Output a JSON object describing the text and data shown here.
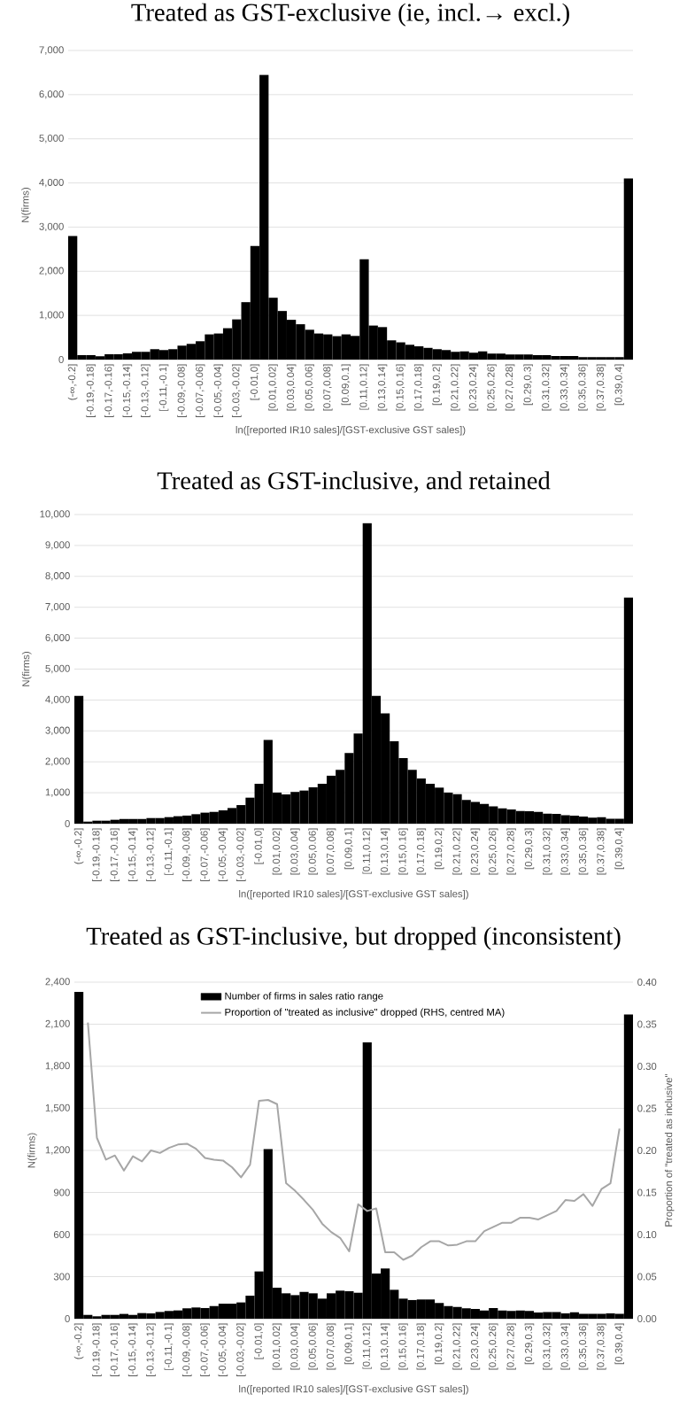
{
  "chart_data": [
    {
      "type": "bar",
      "title": "Treated as GST-exclusive (ie, incl.→ excl.)",
      "xlabel": "ln([reported IR10 sales]/[GST-exclusive GST sales])",
      "ylabel": "N(firms)",
      "categories": [
        "(-∞,-0.2]",
        null,
        "[-0.19,-0.18]",
        null,
        "[-0.17,-0.16]",
        null,
        "[-0.15,-0.14]",
        null,
        "[-0.13,-0.12]",
        null,
        "[-0.11,-0.1]",
        null,
        "[-0.09,-0.08]",
        null,
        "[-0.07,-0.06]",
        null,
        "[-0.05,-0.04]",
        null,
        "[-0.03,-0.02]",
        null,
        "[-0.01,0]",
        null,
        "[0.01,0.02]",
        null,
        "[0.03,0.04]",
        null,
        "[0.05,0.06]",
        null,
        "[0.07,0.08]",
        null,
        "[0.09,0.1]",
        null,
        "[0.11,0.12]",
        null,
        "[0.13,0.14]",
        null,
        "[0.15,0.16]",
        null,
        "[0.17,0.18]",
        null,
        "[0.19,0.2]",
        null,
        "[0.21,0.22]",
        null,
        "[0.23,0.24]",
        null,
        "[0.25,0.26]",
        null,
        "[0.27,0.28]",
        null,
        "[0.29,0.3]",
        null,
        "[0.31,0.32]",
        null,
        "[0.33,0.34]",
        null,
        "[0.35,0.36]",
        null,
        "[0.37,0.38]",
        null,
        "[0.39,0.4]",
        null
      ],
      "values": [
        2800,
        100,
        100,
        75,
        120,
        120,
        140,
        175,
        175,
        235,
        215,
        235,
        315,
        355,
        415,
        570,
        590,
        710,
        910,
        1300,
        2570,
        6450,
        1400,
        1100,
        900,
        800,
        675,
        590,
        570,
        530,
        570,
        535,
        2270,
        770,
        735,
        435,
        390,
        335,
        300,
        265,
        235,
        215,
        175,
        185,
        155,
        185,
        135,
        135,
        115,
        115,
        115,
        100,
        100,
        80,
        80,
        80,
        55,
        55,
        55,
        55,
        55,
        4100
      ],
      "color": "#000000",
      "ylim": [
        0,
        7000
      ],
      "yticks": [
        {
          "value": 0,
          "label": "0"
        },
        {
          "value": 1000,
          "label": "1,000"
        },
        {
          "value": 2000,
          "label": "2,000"
        },
        {
          "value": 3000,
          "label": "3,000"
        },
        {
          "value": 4000,
          "label": "4,000"
        },
        {
          "value": 5000,
          "label": "5,000"
        },
        {
          "value": 6000,
          "label": "6,000"
        },
        {
          "value": 7000,
          "label": "7,000"
        }
      ],
      "grid": "y"
    },
    {
      "type": "bar",
      "title": "Treated as GST-inclusive, and retained",
      "xlabel": "ln([reported IR10 sales]/[GST-exclusive GST sales])",
      "ylabel": "N(firms)",
      "categories": [
        "(-∞,-0.2]",
        null,
        "[-0.19,-0.18]",
        null,
        "[-0.17,-0.16]",
        null,
        "[-0.15,-0.14]",
        null,
        "[-0.13,-0.12]",
        null,
        "[-0.11,-0.1]",
        null,
        "[-0.09,-0.08]",
        null,
        "[-0.07,-0.06]",
        null,
        "[-0.05,-0.04]",
        null,
        "[-0.03,-0.02]",
        null,
        "[-0.01,0]",
        null,
        "[0.01,0.02]",
        null,
        "[0.03,0.04]",
        null,
        "[0.05,0.06]",
        null,
        "[0.07,0.08]",
        null,
        "[0.09,0.1]",
        null,
        "[0.11,0.12]",
        null,
        "[0.13,0.14]",
        null,
        "[0.15,0.16]",
        null,
        "[0.17,0.18]",
        null,
        "[0.19,0.2]",
        null,
        "[0.21,0.22]",
        null,
        "[0.23,0.24]",
        null,
        "[0.25,0.26]",
        null,
        "[0.27,0.28]",
        null,
        "[0.29,0.3]",
        null,
        "[0.31,0.32]",
        null,
        "[0.33,0.34]",
        null,
        "[0.35,0.36]",
        null,
        "[0.37,0.38]",
        null,
        "[0.39,0.4]",
        null
      ],
      "values": [
        4130,
        65,
        95,
        95,
        125,
        150,
        150,
        150,
        180,
        180,
        210,
        240,
        260,
        305,
        355,
        380,
        430,
        505,
        600,
        840,
        1290,
        2705,
        1005,
        945,
        1025,
        1070,
        1175,
        1290,
        1550,
        1740,
        2285,
        2915,
        9720,
        4130,
        3565,
        2665,
        2120,
        1740,
        1460,
        1290,
        1165,
        1005,
        955,
        765,
        700,
        640,
        555,
        495,
        460,
        410,
        400,
        380,
        325,
        315,
        275,
        260,
        230,
        190,
        210,
        160,
        160,
        7310
      ],
      "color": "#000000",
      "ylim": [
        0,
        10000
      ],
      "yticks": [
        {
          "value": 0,
          "label": "0"
        },
        {
          "value": 1000,
          "label": "1,000"
        },
        {
          "value": 2000,
          "label": "2,000"
        },
        {
          "value": 3000,
          "label": "3,000"
        },
        {
          "value": 4000,
          "label": "4,000"
        },
        {
          "value": 5000,
          "label": "5,000"
        },
        {
          "value": 6000,
          "label": "6,000"
        },
        {
          "value": 7000,
          "label": "7,000"
        },
        {
          "value": 8000,
          "label": "8,000"
        },
        {
          "value": 9000,
          "label": "9,000"
        },
        {
          "value": 10000,
          "label": "10,000"
        }
      ],
      "grid": "y"
    },
    {
      "type": "bar",
      "title": "Treated as GST-inclusive, but dropped (inconsistent)",
      "xlabel": "ln([reported IR10 sales]/[GST-exclusive GST sales])",
      "ylabel": "N(firms)",
      "y2label": "Proportion of \"treated as inclusive\"",
      "categories": [
        "(-∞,-0.2]",
        null,
        "[-0.19,-0.18]",
        null,
        "[-0.17,-0.16]",
        null,
        "[-0.15,-0.14]",
        null,
        "[-0.13,-0.12]",
        null,
        "[-0.11,-0.1]",
        null,
        "[-0.09,-0.08]",
        null,
        "[-0.07,-0.06]",
        null,
        "[-0.05,-0.04]",
        null,
        "[-0.03,-0.02]",
        null,
        "[-0.01,0]",
        null,
        "[0.01,0.02]",
        null,
        "[0.03,0.04]",
        null,
        "[0.05,0.06]",
        null,
        "[0.07,0.08]",
        null,
        "[0.09,0.1]",
        null,
        "[0.11,0.12]",
        null,
        "[0.13,0.14]",
        null,
        "[0.15,0.16]",
        null,
        "[0.17,0.18]",
        null,
        "[0.19,0.2]",
        null,
        "[0.21,0.22]",
        null,
        "[0.23,0.24]",
        null,
        "[0.25,0.26]",
        null,
        "[0.27,0.28]",
        null,
        "[0.29,0.3]",
        null,
        "[0.31,0.32]",
        null,
        "[0.33,0.34]",
        null,
        "[0.35,0.36]",
        null,
        "[0.37,0.38]",
        null,
        "[0.39,0.4]",
        null
      ],
      "series": [
        {
          "name": "Number of firms in sales ratio range",
          "type": "bar",
          "color": "#000000",
          "values": [
            2330,
            27,
            17,
            27,
            27,
            34,
            27,
            40,
            38,
            48,
            55,
            59,
            74,
            80,
            76,
            90,
            107,
            107,
            116,
            164,
            337,
            1210,
            221,
            181,
            168,
            191,
            181,
            143,
            181,
            200,
            196,
            185,
            1970,
            322,
            358,
            206,
            143,
            133,
            137,
            137,
            112,
            90,
            84,
            74,
            69,
            59,
            76,
            59,
            55,
            59,
            55,
            44,
            48,
            48,
            38,
            46,
            34,
            34,
            34,
            38,
            34,
            2170
          ]
        },
        {
          "name": "Proportion of \"treated as inclusive\" dropped (RHS, centred MA)",
          "type": "line",
          "axis": "y2",
          "color": "#a6a6a6",
          "values": [
            null,
            0.352,
            0.215,
            0.189,
            0.194,
            0.176,
            0.193,
            0.187,
            0.2,
            0.197,
            0.203,
            0.207,
            0.208,
            0.202,
            0.191,
            0.189,
            0.188,
            0.18,
            0.168,
            0.183,
            0.259,
            0.26,
            0.255,
            0.161,
            0.152,
            0.141,
            0.129,
            0.113,
            0.103,
            0.096,
            0.08,
            0.136,
            0.128,
            0.131,
            0.079,
            0.079,
            0.07,
            0.075,
            0.085,
            0.092,
            0.092,
            0.087,
            0.088,
            0.092,
            0.092,
            0.104,
            0.109,
            0.114,
            0.114,
            0.12,
            0.12,
            0.118,
            0.123,
            0.128,
            0.141,
            0.14,
            0.148,
            0.134,
            0.154,
            0.161,
            0.226,
            null
          ]
        }
      ],
      "ylim": [
        0,
        2400
      ],
      "yticks": [
        {
          "value": 0,
          "label": "0"
        },
        {
          "value": 300,
          "label": "300"
        },
        {
          "value": 600,
          "label": "600"
        },
        {
          "value": 900,
          "label": "900"
        },
        {
          "value": 1200,
          "label": "1,200"
        },
        {
          "value": 1500,
          "label": "1,500"
        },
        {
          "value": 1800,
          "label": "1,800"
        },
        {
          "value": 2100,
          "label": "2,100"
        },
        {
          "value": 2400,
          "label": "2,400"
        }
      ],
      "y2lim": [
        0,
        0.4
      ],
      "y2ticks": [
        {
          "value": 0,
          "label": "0.00"
        },
        {
          "value": 0.05,
          "label": "0.05"
        },
        {
          "value": 0.1,
          "label": "0.10"
        },
        {
          "value": 0.15,
          "label": "0.15"
        },
        {
          "value": 0.2,
          "label": "0.20"
        },
        {
          "value": 0.25,
          "label": "0.25"
        },
        {
          "value": 0.3,
          "label": "0.30"
        },
        {
          "value": 0.35,
          "label": "0.35"
        },
        {
          "value": 0.4,
          "label": "0.40"
        }
      ],
      "grid": "y",
      "legend": "top"
    }
  ]
}
